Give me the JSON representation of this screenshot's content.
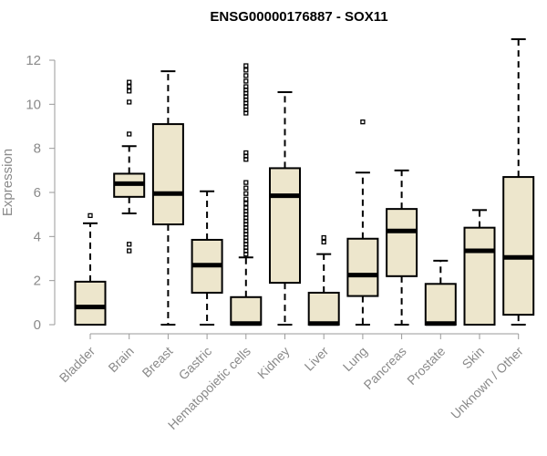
{
  "chart_data": {
    "type": "boxplot",
    "title": "ENSG00000176887 - SOX11",
    "ylabel": "Expression",
    "xlabel": "",
    "ylim": [
      0,
      12.9
    ],
    "yticks": [
      0,
      2,
      4,
      6,
      8,
      10,
      12
    ],
    "grid": false,
    "legend": "none",
    "box_fill": "#ede6cc",
    "categories": [
      "Bladder",
      "Brain",
      "Breast",
      "Gastric",
      "Hematopoietic cells",
      "Kidney",
      "Liver",
      "Lung",
      "Pancreas",
      "Prostate",
      "Skin",
      "Unknown / Other"
    ],
    "boxes": [
      {
        "whisker_low": 0,
        "q1": 0,
        "median": 0.8,
        "q3": 1.95,
        "whisker_high": 4.6,
        "outliers": [
          4.95
        ]
      },
      {
        "whisker_low": 5.05,
        "q1": 5.8,
        "median": 6.4,
        "q3": 6.85,
        "whisker_high": 8.1,
        "outliers": [
          3.35,
          3.65,
          8.65,
          10.1,
          10.6,
          10.8,
          11.0
        ]
      },
      {
        "whisker_low": 0,
        "q1": 4.55,
        "median": 5.95,
        "q3": 9.1,
        "whisker_high": 11.5,
        "outliers": []
      },
      {
        "whisker_low": 0,
        "q1": 1.45,
        "median": 2.7,
        "q3": 3.85,
        "whisker_high": 6.05,
        "outliers": []
      },
      {
        "whisker_low": 0,
        "q1": 0,
        "median": 0.05,
        "q3": 1.25,
        "whisker_high": 3.05,
        "outliers": [
          3.2,
          3.35,
          3.5,
          3.65,
          3.8,
          3.95,
          4.1,
          4.25,
          4.4,
          4.55,
          4.7,
          4.85,
          5.0,
          5.15,
          5.3,
          5.5,
          5.7,
          5.95,
          6.2,
          6.45,
          7.5,
          7.65,
          7.8,
          9.6,
          9.75,
          9.9,
          10.05,
          10.2,
          10.35,
          10.5,
          10.65,
          10.8,
          11.05,
          11.3,
          11.55,
          11.75
        ]
      },
      {
        "whisker_low": 0,
        "q1": 1.9,
        "median": 5.85,
        "q3": 7.1,
        "whisker_high": 10.55,
        "outliers": []
      },
      {
        "whisker_low": 0,
        "q1": 0,
        "median": 0.05,
        "q3": 1.45,
        "whisker_high": 3.2,
        "outliers": [
          3.75,
          3.95
        ]
      },
      {
        "whisker_low": 0,
        "q1": 1.3,
        "median": 2.25,
        "q3": 3.9,
        "whisker_high": 6.9,
        "outliers": [
          9.2
        ]
      },
      {
        "whisker_low": 0,
        "q1": 2.2,
        "median": 4.25,
        "q3": 5.25,
        "whisker_high": 7.0,
        "outliers": []
      },
      {
        "whisker_low": 0,
        "q1": 0,
        "median": 0.05,
        "q3": 1.85,
        "whisker_high": 2.9,
        "outliers": []
      },
      {
        "whisker_low": 0,
        "q1": 0,
        "median": 3.35,
        "q3": 4.4,
        "whisker_high": 5.2,
        "outliers": []
      },
      {
        "whisker_low": 0,
        "q1": 0.45,
        "median": 3.05,
        "q3": 6.7,
        "whisker_high": 12.95,
        "outliers": []
      }
    ]
  }
}
